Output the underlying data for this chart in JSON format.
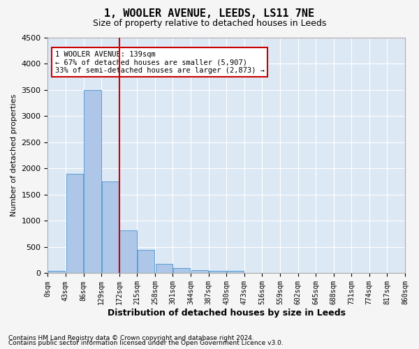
{
  "title1": "1, WOOLER AVENUE, LEEDS, LS11 7NE",
  "title2": "Size of property relative to detached houses in Leeds",
  "xlabel": "Distribution of detached houses by size in Leeds",
  "ylabel": "Number of detached properties",
  "bar_color": "#aec6e8",
  "bar_edge_color": "#5a9fd4",
  "background_color": "#dde8f5",
  "grid_color": "#ffffff",
  "vline_color": "#cc0000",
  "annotation_line1": "1 WOOLER AVENUE: 139sqm",
  "annotation_line2": "← 67% of detached houses are smaller (5,907)",
  "annotation_line3": "33% of semi-detached houses are larger (2,873) →",
  "annotation_box_color": "#ffffff",
  "annotation_box_edge_color": "#cc0000",
  "footnote1": "Contains HM Land Registry data © Crown copyright and database right 2024.",
  "footnote2": "Contains public sector information licensed under the Open Government Licence v3.0.",
  "tick_labels": [
    "0sqm",
    "43sqm",
    "86sqm",
    "129sqm",
    "172sqm",
    "215sqm",
    "258sqm",
    "301sqm",
    "344sqm",
    "387sqm",
    "430sqm",
    "473sqm",
    "516sqm",
    "559sqm",
    "602sqm",
    "645sqm",
    "688sqm",
    "731sqm",
    "774sqm",
    "817sqm",
    "860sqm"
  ],
  "bar_heights": [
    50,
    1900,
    3500,
    1750,
    820,
    450,
    175,
    100,
    55,
    50,
    40,
    10,
    5,
    3,
    2,
    2,
    1,
    1,
    1,
    1
  ],
  "ylim": [
    0,
    4500
  ],
  "yticks": [
    0,
    500,
    1000,
    1500,
    2000,
    2500,
    3000,
    3500,
    4000,
    4500
  ],
  "vline_pos": 3.5
}
